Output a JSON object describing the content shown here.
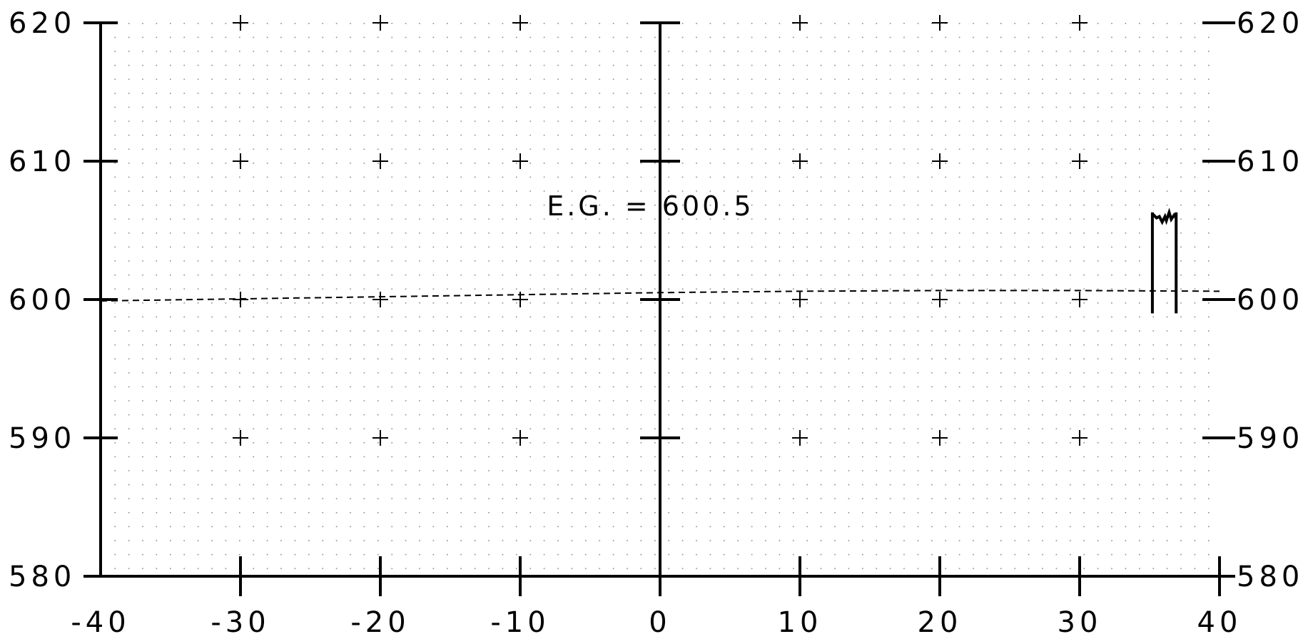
{
  "chart_data": {
    "type": "line",
    "title": "",
    "xlabel": "",
    "ylabel": "",
    "xlim": [
      -40,
      40
    ],
    "ylim": [
      580,
      620
    ],
    "x_ticks": [
      -40,
      -30,
      -20,
      -10,
      0,
      10,
      20,
      30,
      40
    ],
    "x_tick_labels": [
      "-40",
      "-30",
      "-20",
      "-10",
      "0",
      "10",
      "20",
      "30",
      "40"
    ],
    "y_ticks": [
      580,
      590,
      600,
      610,
      620
    ],
    "y_tick_labels": [
      "580",
      "590",
      "600",
      "610",
      "620"
    ],
    "grid": "dotted",
    "series": [
      {
        "style": "dashed",
        "x": [
          -40,
          -30,
          -20,
          -10,
          0,
          10,
          20,
          30,
          40
        ],
        "y": [
          599.9,
          600.05,
          600.2,
          600.35,
          600.5,
          600.6,
          600.65,
          600.65,
          600.6
        ]
      }
    ],
    "structure": {
      "x_left": 35.2,
      "x_right": 36.9,
      "y_bottom": 599.0,
      "y_top": 606.3,
      "crest": [
        [
          35.2,
          606.2
        ],
        [
          35.5,
          605.9
        ],
        [
          35.7,
          606.0
        ],
        [
          35.9,
          605.6
        ],
        [
          36.1,
          606.0
        ],
        [
          36.2,
          605.7
        ],
        [
          36.4,
          606.3
        ],
        [
          36.55,
          605.8
        ],
        [
          36.75,
          606.1
        ],
        [
          36.9,
          605.9
        ]
      ]
    },
    "annotation": {
      "text": "E.G.  =  600.5",
      "x": -3,
      "y": 607
    }
  }
}
